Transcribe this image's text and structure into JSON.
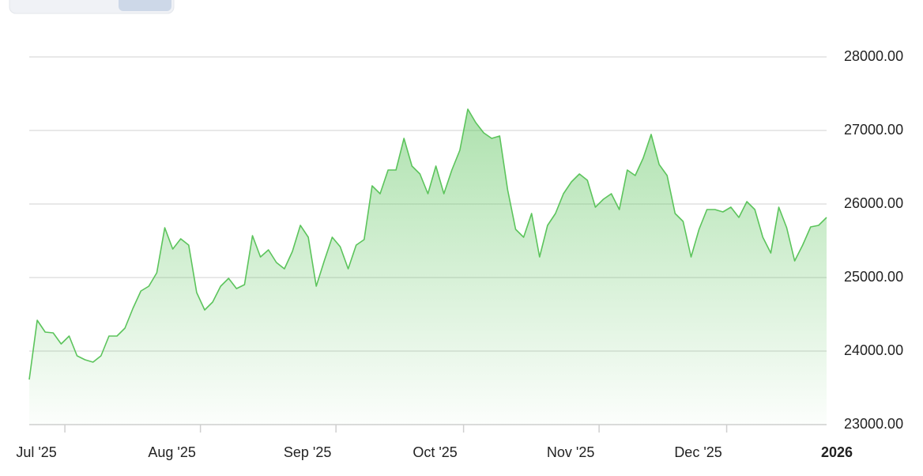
{
  "chart_data": {
    "type": "line",
    "categories": [
      null,
      "Jul '25",
      null,
      null,
      null,
      null,
      null,
      null,
      null,
      null,
      null,
      null,
      null,
      null,
      null,
      null,
      null,
      null,
      "Aug '25",
      null,
      null,
      null,
      null,
      null,
      null,
      null,
      null,
      null,
      null,
      null,
      null,
      null,
      null,
      null,
      null,
      "Sep '25",
      null,
      null,
      null,
      null,
      null,
      null,
      null,
      null,
      null,
      null,
      null,
      null,
      null,
      null,
      null,
      "Oct '25",
      null,
      null,
      null,
      null,
      null,
      null,
      null,
      null,
      null,
      null,
      null,
      null,
      null,
      null,
      null,
      null,
      "Nov '25",
      null,
      null,
      null,
      null,
      null,
      null,
      null,
      null,
      null,
      null,
      null,
      null,
      null,
      null,
      null,
      "Dec '25",
      null,
      null,
      null,
      null,
      null,
      null,
      null,
      null,
      null,
      null,
      null,
      null,
      null,
      null,
      null,
      "2026"
    ],
    "series": [
      {
        "color": "#5cc45c",
        "values": [
          23613,
          24419,
          24258,
          24247,
          24097,
          24204,
          23935,
          23882,
          23849,
          23935,
          24204,
          24204,
          24312,
          24581,
          24817,
          24882,
          25064,
          25677,
          25387,
          25527,
          25441,
          24796,
          24559,
          24667,
          24882,
          24989,
          24849,
          24903,
          25570,
          25280,
          25376,
          25204,
          25118,
          25355,
          25710,
          25548,
          24882,
          25226,
          25548,
          25419,
          25118,
          25441,
          25516,
          26247,
          26140,
          26462,
          26462,
          26892,
          26516,
          26409,
          26140,
          26516,
          26140,
          26462,
          26731,
          27290,
          27108,
          26968,
          26892,
          26925,
          26193,
          25656,
          25548,
          25871,
          25280,
          25710,
          25871,
          26140,
          26301,
          26409,
          26323,
          25957,
          26065,
          26140,
          25925,
          26462,
          26387,
          26624,
          26946,
          26538,
          26387,
          25871,
          25763,
          25280,
          25656,
          25925,
          25925,
          25892,
          25957,
          25817,
          26032,
          25925,
          25548,
          25333,
          25957,
          25677,
          25226,
          25441,
          25688,
          25710,
          25817
        ]
      }
    ],
    "ylim": [
      23000,
      28000
    ],
    "yticks": [
      {
        "value": 23000,
        "label": "23000.00"
      },
      {
        "value": 24000,
        "label": "24000.00"
      },
      {
        "value": 25000,
        "label": "25000.00"
      },
      {
        "value": 26000,
        "label": "26000.00"
      },
      {
        "value": 27000,
        "label": "27000.00"
      },
      {
        "value": 28000,
        "label": "28000.00"
      }
    ],
    "grid": true
  }
}
